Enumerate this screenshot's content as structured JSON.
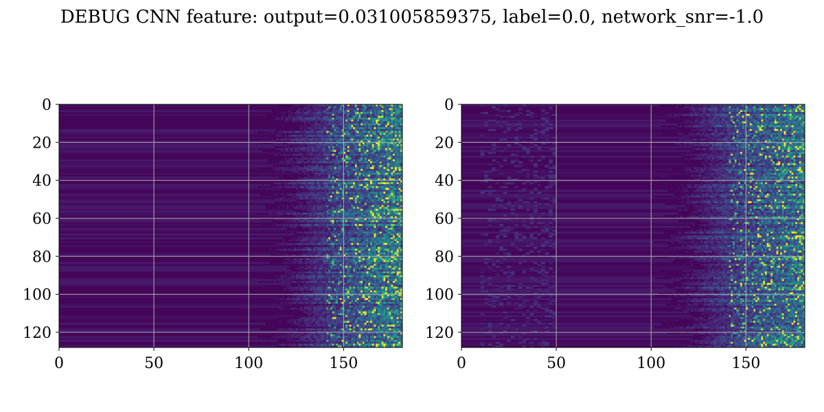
{
  "figure": {
    "title": "DEBUG CNN feature: output=0.031005859375, label=0.0, network_snr=-1.0"
  },
  "chart_data": [
    {
      "type": "heatmap",
      "colormap": "viridis",
      "x_range": [
        0,
        181
      ],
      "y_range": [
        0,
        128
      ],
      "y_inverted": true,
      "x_ticks": [
        0,
        50,
        100,
        150
      ],
      "y_ticks": [
        0,
        20,
        40,
        60,
        80,
        100,
        120
      ],
      "grid": true,
      "grid_color": "#b0b0b0",
      "activation_onset_x_approx": 115,
      "peak_value_x_range": [
        140,
        181
      ],
      "background_texture": "horizontal-bands",
      "seed": 11
    },
    {
      "type": "heatmap",
      "colormap": "viridis",
      "x_range": [
        0,
        181
      ],
      "y_range": [
        0,
        128
      ],
      "y_inverted": true,
      "x_ticks": [
        0,
        50,
        100,
        150
      ],
      "y_ticks": [
        0,
        20,
        40,
        60,
        80,
        100,
        120
      ],
      "grid": true,
      "grid_color": "#b0b0b0",
      "activation_onset_x_approx": 112,
      "peak_value_x_range": [
        140,
        181
      ],
      "background_texture": "horizontal-bands-with-noise",
      "seed": 29
    }
  ]
}
